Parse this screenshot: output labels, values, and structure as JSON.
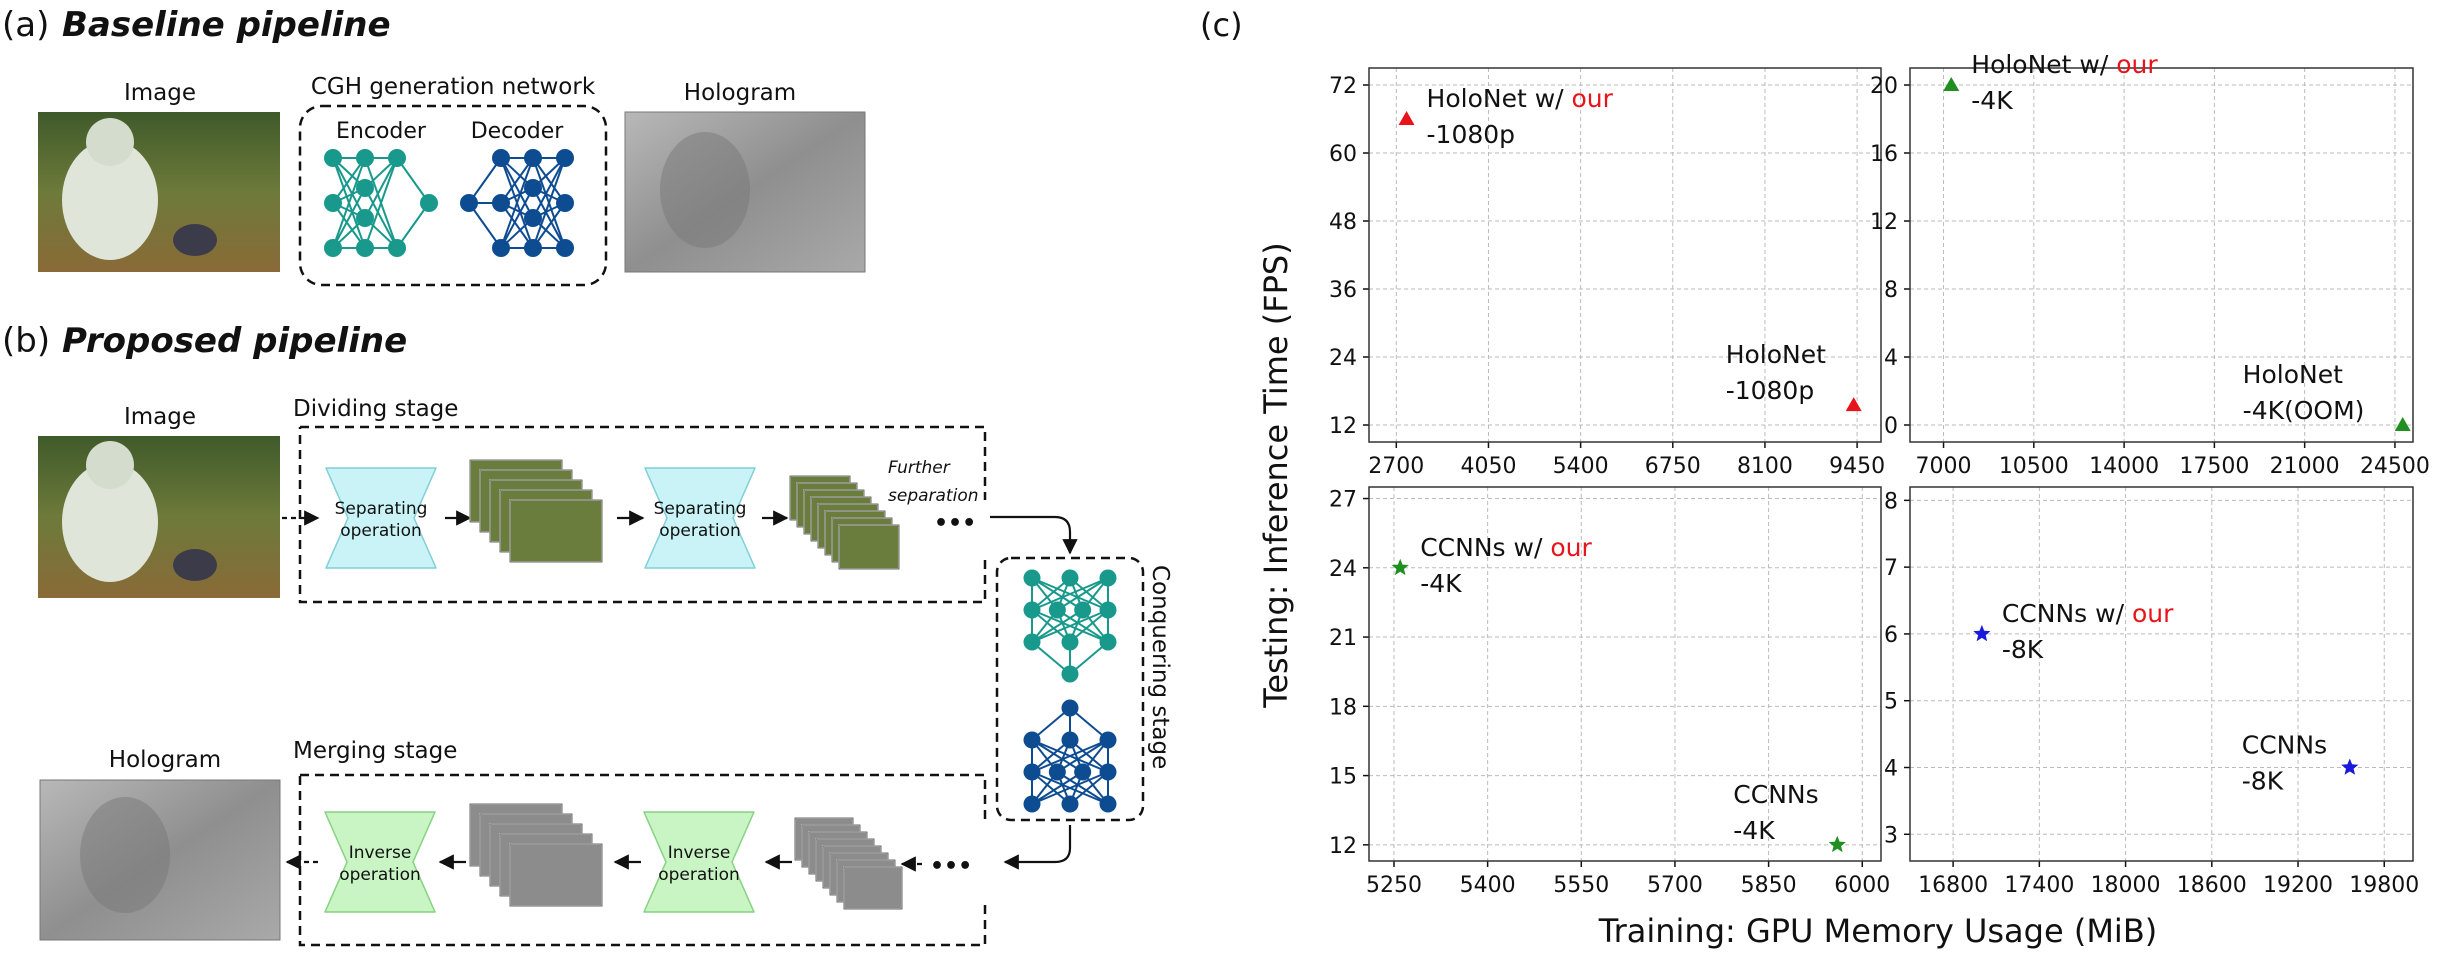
{
  "panel_a": {
    "title_prefix": "(a)",
    "title": "Baseline pipeline",
    "image_label": "Image",
    "network_label": "CGH generation network",
    "encoder_label": "Encoder",
    "decoder_label": "Decoder",
    "hologram_label": "Hologram"
  },
  "panel_b": {
    "title_prefix": "(b)",
    "title": "Proposed pipeline",
    "image_label": "Image",
    "dividing_label": "Dividing stage",
    "separating_line1": "Separating",
    "separating_line2": "operation",
    "further_line1": "Further",
    "further_line2": "separation",
    "ellipsis": "•••",
    "conquering_label": "Conquering stage",
    "merging_label": "Merging stage",
    "hologram_label": "Hologram",
    "inverse_line1": "Inverse",
    "inverse_line2": "operation"
  },
  "panel_c": {
    "title": "(c)",
    "ylabel": "Testing: Inference Time (FPS)",
    "xlabel": "Training: GPU Memory Usage (MiB)",
    "colors": {
      "red": "#e8141b",
      "green": "#1f8f1f",
      "blue": "#1a1adb",
      "our": "#e8141b"
    }
  },
  "chart_data": [
    {
      "type": "scatter",
      "xticks": [
        "2700",
        "4050",
        "5400",
        "6750",
        "8100",
        "9450"
      ],
      "yticks": [
        "12",
        "24",
        "36",
        "48",
        "60",
        "72"
      ],
      "xlim": [
        2300,
        9800
      ],
      "ylim": [
        9,
        75
      ],
      "points": [
        {
          "x": 2850,
          "y": 66,
          "marker": "triangle",
          "color": "#e8141b",
          "label1": "HoloNet w/ ",
          "label_our": "our",
          "label2": "-1080p"
        },
        {
          "x": 9400,
          "y": 15.5,
          "marker": "triangle",
          "color": "#e8141b",
          "label1": "HoloNet",
          "label_our": "",
          "label2": "-1080p"
        }
      ]
    },
    {
      "type": "scatter",
      "xticks": [
        "7000",
        "10500",
        "14000",
        "17500",
        "21000",
        "24500"
      ],
      "yticks": [
        "0",
        "4",
        "8",
        "12",
        "16",
        "20"
      ],
      "xlim": [
        5700,
        25200
      ],
      "ylim": [
        -1,
        21
      ],
      "points": [
        {
          "x": 7300,
          "y": 20,
          "marker": "triangle",
          "color": "#1f8f1f",
          "label1": "HoloNet w/ ",
          "label_our": "our",
          "label2": "-4K"
        },
        {
          "x": 24800,
          "y": 0,
          "marker": "triangle",
          "color": "#1f8f1f",
          "label1": "HoloNet",
          "label_our": "",
          "label2": "-4K(OOM)"
        }
      ]
    },
    {
      "type": "scatter",
      "xticks": [
        "5250",
        "5400",
        "5550",
        "5700",
        "5850",
        "6000"
      ],
      "yticks": [
        "12",
        "15",
        "18",
        "21",
        "24",
        "27"
      ],
      "xlim": [
        5210,
        6030
      ],
      "ylim": [
        11.3,
        27.5
      ],
      "points": [
        {
          "x": 5260,
          "y": 24,
          "marker": "star",
          "color": "#1f8f1f",
          "label1": "CCNNs w/ ",
          "label_our": "our",
          "label2": "-4K"
        },
        {
          "x": 5960,
          "y": 12,
          "marker": "star",
          "color": "#1f8f1f",
          "label1": "CCNNs",
          "label_our": "",
          "label2": "-4K"
        }
      ]
    },
    {
      "type": "scatter",
      "xticks": [
        "16800",
        "17400",
        "18000",
        "18600",
        "19200",
        "19800"
      ],
      "yticks": [
        "3",
        "4",
        "5",
        "6",
        "7",
        "8"
      ],
      "xlim": [
        16500,
        20000
      ],
      "ylim": [
        2.6,
        8.2
      ],
      "points": [
        {
          "x": 17000,
          "y": 6,
          "marker": "star",
          "color": "#1a1adb",
          "label1": "CCNNs w/ ",
          "label_our": "our",
          "label2": "-8K"
        },
        {
          "x": 19560,
          "y": 4,
          "marker": "star",
          "color": "#1a1adb",
          "label1": "CCNNs",
          "label_our": "",
          "label2": "-8K"
        }
      ]
    }
  ]
}
